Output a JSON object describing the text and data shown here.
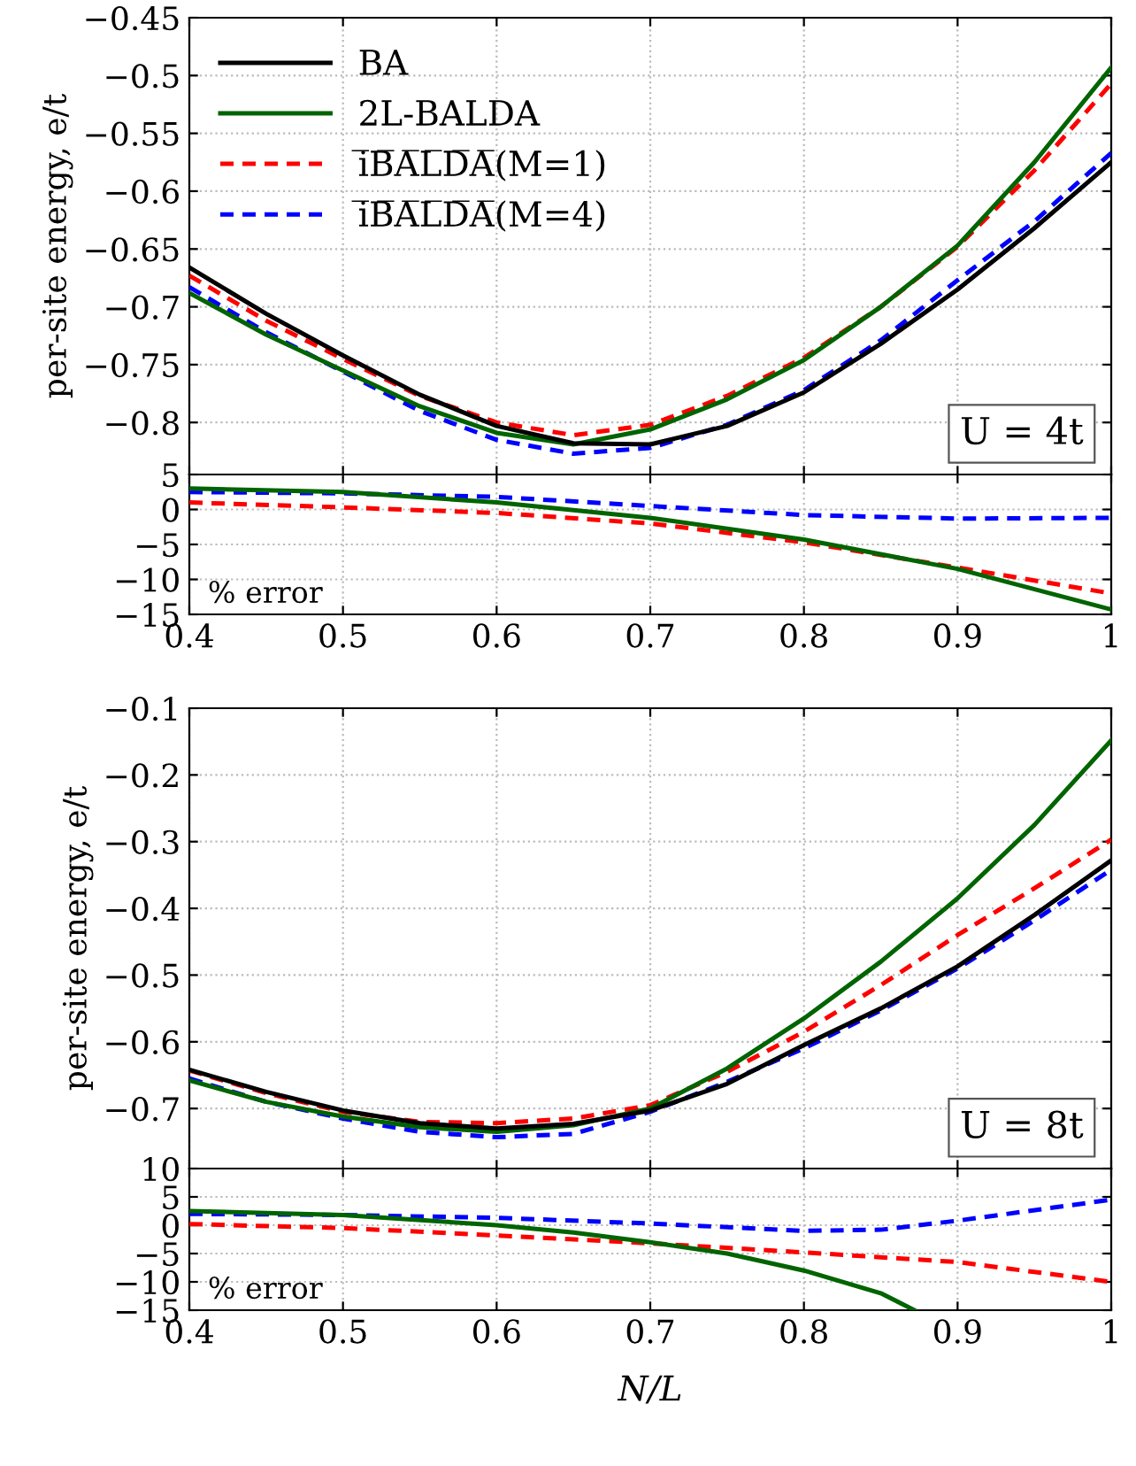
{
  "chart_data": [
    {
      "type": "line",
      "ylabel": "per-site energy, e/t",
      "annotations": [
        "U = 4t"
      ],
      "x": [
        0.4,
        0.45,
        0.5,
        0.55,
        0.6,
        0.65,
        0.7,
        0.75,
        0.8,
        0.85,
        0.9,
        0.95,
        1.0
      ],
      "xlim": [
        0.4,
        1.0
      ],
      "xticks": [
        0.4,
        0.5,
        0.6,
        0.7,
        0.8,
        0.9,
        1
      ],
      "ylim": [
        -0.845,
        -0.45
      ],
      "yticks": [
        {
          "value": -0.8,
          "label": "−0.8"
        },
        {
          "value": -0.75,
          "label": "−0.75"
        },
        {
          "value": -0.7,
          "label": "−0.7"
        },
        {
          "value": -0.65,
          "label": "−0.65"
        },
        {
          "value": -0.6,
          "label": "−0.6"
        },
        {
          "value": -0.55,
          "label": "−0.55"
        },
        {
          "value": -0.5,
          "label": "−0.5"
        },
        {
          "value": -0.45,
          "label": "−0.45"
        }
      ],
      "tick_labels": "y",
      "grid": true,
      "legend": "top left",
      "series": [
        {
          "name": "BA",
          "color": "#000000",
          "line_style": "solid",
          "values": [
            -0.666,
            -0.706,
            -0.742,
            -0.776,
            -0.803,
            -0.818,
            -0.819,
            -0.803,
            -0.774,
            -0.732,
            -0.685,
            -0.632,
            -0.575
          ]
        },
        {
          "name": "2L-BALDA",
          "color": "#006400",
          "line_style": "solid",
          "values": [
            -0.688,
            -0.724,
            -0.755,
            -0.786,
            -0.809,
            -0.819,
            -0.806,
            -0.78,
            -0.746,
            -0.7,
            -0.647,
            -0.575,
            -0.493
          ]
        },
        {
          "name": "i̅B̅A̅L̅D̅A̅(M=1)",
          "color": "#ff0000",
          "line_style": "dashed",
          "values": [
            -0.673,
            -0.712,
            -0.745,
            -0.777,
            -0.8,
            -0.811,
            -0.802,
            -0.777,
            -0.744,
            -0.7,
            -0.648,
            -0.582,
            -0.507
          ]
        },
        {
          "name": "i̅B̅A̅L̅D̅A̅(M=4)",
          "color": "#0000ff",
          "line_style": "dashed",
          "values": [
            -0.683,
            -0.722,
            -0.756,
            -0.79,
            -0.815,
            -0.827,
            -0.822,
            -0.802,
            -0.772,
            -0.729,
            -0.677,
            -0.626,
            -0.567
          ]
        }
      ]
    },
    {
      "type": "line",
      "annotations": [
        "% error"
      ],
      "x": [
        0.4,
        0.5,
        0.6,
        0.7,
        0.8,
        0.9,
        1.0
      ],
      "xlim": [
        0.4,
        1.0
      ],
      "xticks": [
        0.4,
        0.5,
        0.6,
        0.7,
        0.8,
        0.9,
        1
      ],
      "ylim": [
        -15,
        5
      ],
      "yticks": [
        {
          "value": -15,
          "label": "−15"
        },
        {
          "value": -10,
          "label": "−10"
        },
        {
          "value": -5,
          "label": "−5"
        },
        0,
        5
      ],
      "grid": true,
      "series": [
        {
          "color": "#006400",
          "line_style": "solid",
          "values": [
            3,
            2.5,
            1,
            -1.2,
            -4.3,
            -8.5,
            -14.3
          ]
        },
        {
          "color": "#ff0000",
          "line_style": "dashed",
          "values": [
            1,
            0.3,
            -0.5,
            -2,
            -4.7,
            -8.3,
            -12
          ]
        },
        {
          "color": "#0000ff",
          "line_style": "dashed",
          "values": [
            2.5,
            2.3,
            1.8,
            0.5,
            -0.8,
            -1.3,
            -1.2
          ]
        }
      ]
    },
    {
      "type": "line",
      "ylabel": "per-site energy, e/t",
      "annotations": [
        "U = 8t"
      ],
      "x": [
        0.4,
        0.45,
        0.5,
        0.55,
        0.6,
        0.65,
        0.7,
        0.75,
        0.8,
        0.85,
        0.9,
        0.95,
        1.0
      ],
      "xlim": [
        0.4,
        1.0
      ],
      "xticks": [
        0.4,
        0.5,
        0.6,
        0.7,
        0.8,
        0.9,
        1
      ],
      "ylim": [
        -0.79,
        -0.1
      ],
      "yticks": [
        {
          "value": -0.7,
          "label": "−0.7"
        },
        {
          "value": -0.6,
          "label": "−0.6"
        },
        {
          "value": -0.5,
          "label": "−0.5"
        },
        {
          "value": -0.4,
          "label": "−0.4"
        },
        {
          "value": -0.3,
          "label": "−0.3"
        },
        {
          "value": -0.2,
          "label": "−0.2"
        },
        {
          "value": -0.1,
          "label": "−0.1"
        }
      ],
      "tick_labels": "y",
      "grid": true,
      "series": [
        {
          "color": "#000000",
          "line_style": "solid",
          "values": [
            -0.642,
            -0.675,
            -0.703,
            -0.722,
            -0.73,
            -0.723,
            -0.703,
            -0.663,
            -0.605,
            -0.55,
            -0.487,
            -0.41,
            -0.328
          ]
        },
        {
          "color": "#006400",
          "line_style": "solid",
          "values": [
            -0.658,
            -0.69,
            -0.712,
            -0.728,
            -0.735,
            -0.725,
            -0.7,
            -0.64,
            -0.565,
            -0.48,
            -0.385,
            -0.275,
            -0.148
          ]
        },
        {
          "color": "#ff0000",
          "line_style": "dashed",
          "values": [
            -0.643,
            -0.677,
            -0.705,
            -0.72,
            -0.722,
            -0.715,
            -0.695,
            -0.645,
            -0.585,
            -0.515,
            -0.44,
            -0.37,
            -0.297
          ]
        },
        {
          "color": "#0000ff",
          "line_style": "dashed",
          "values": [
            -0.655,
            -0.69,
            -0.715,
            -0.735,
            -0.743,
            -0.738,
            -0.705,
            -0.66,
            -0.61,
            -0.553,
            -0.49,
            -0.418,
            -0.342
          ]
        }
      ]
    },
    {
      "type": "line",
      "xlabel": "N/L",
      "annotations": [
        "% error"
      ],
      "x": [
        0.4,
        0.5,
        0.6,
        0.7,
        0.8,
        0.9,
        1.0
      ],
      "xlim": [
        0.4,
        1.0
      ],
      "xticks": [
        0.4,
        0.5,
        0.6,
        0.7,
        0.8,
        0.9,
        1
      ],
      "ylim": [
        -15,
        10
      ],
      "yticks": [
        {
          "value": -15,
          "label": "−15"
        },
        {
          "value": -10,
          "label": "−10"
        },
        {
          "value": -5,
          "label": "−5"
        },
        0,
        5,
        10
      ],
      "grid": true,
      "series": [
        {
          "color": "#006400",
          "line_style": "solid",
          "x": [
            0.4,
            0.5,
            0.6,
            0.65,
            0.7,
            0.75,
            0.8,
            0.85,
            0.872
          ],
          "values": [
            2.5,
            1.8,
            0,
            -1.3,
            -3,
            -5,
            -8,
            -12,
            -15
          ]
        },
        {
          "color": "#ff0000",
          "line_style": "dashed",
          "values": [
            0.2,
            -0.5,
            -1.8,
            -3.2,
            -4.8,
            -6.5,
            -10
          ]
        },
        {
          "color": "#0000ff",
          "line_style": "dashed",
          "x": [
            0.4,
            0.5,
            0.6,
            0.7,
            0.8,
            0.85,
            0.9,
            1.0
          ],
          "values": [
            2,
            1.8,
            1.3,
            0.3,
            -1,
            -0.8,
            0.8,
            4.5
          ]
        }
      ]
    }
  ]
}
